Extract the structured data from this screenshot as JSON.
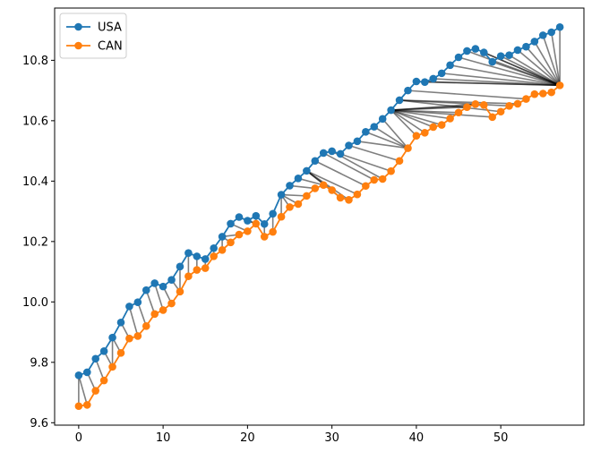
{
  "chart_data": {
    "type": "line",
    "x": [
      0,
      1,
      2,
      3,
      4,
      5,
      6,
      7,
      8,
      9,
      10,
      11,
      12,
      13,
      14,
      15,
      16,
      17,
      18,
      19,
      20,
      21,
      22,
      23,
      24,
      25,
      26,
      27,
      28,
      29,
      30,
      31,
      32,
      33,
      34,
      35,
      36,
      37,
      38,
      39,
      40,
      41,
      42,
      43,
      44,
      45,
      46,
      47,
      48,
      49,
      50,
      51,
      52,
      53,
      54,
      55,
      56,
      57
    ],
    "series": [
      {
        "name": "USA",
        "color": "#1f77b4",
        "values": [
          9.757,
          9.767,
          9.812,
          9.837,
          9.882,
          9.932,
          9.985,
          9.999,
          10.039,
          10.062,
          10.051,
          10.073,
          10.117,
          10.162,
          10.151,
          10.142,
          10.178,
          10.216,
          10.259,
          10.281,
          10.269,
          10.285,
          10.258,
          10.292,
          10.355,
          10.385,
          10.409,
          10.434,
          10.467,
          10.493,
          10.499,
          10.49,
          10.518,
          10.532,
          10.563,
          10.58,
          10.606,
          10.635,
          10.668,
          10.7,
          10.73,
          10.728,
          10.739,
          10.757,
          10.784,
          10.81,
          10.831,
          10.838,
          10.826,
          10.795,
          10.814,
          10.817,
          10.834,
          10.845,
          10.862,
          10.883,
          10.893,
          10.91
        ]
      },
      {
        "name": "CAN",
        "color": "#ff7f0e",
        "values": [
          9.655,
          9.659,
          9.706,
          9.74,
          9.785,
          9.831,
          9.879,
          9.887,
          9.92,
          9.96,
          9.973,
          9.995,
          10.034,
          10.085,
          10.106,
          10.112,
          10.151,
          10.172,
          10.197,
          10.223,
          10.234,
          10.259,
          10.216,
          10.232,
          10.282,
          10.314,
          10.324,
          10.351,
          10.376,
          10.387,
          10.37,
          10.345,
          10.338,
          10.356,
          10.384,
          10.404,
          10.407,
          10.433,
          10.467,
          10.509,
          10.55,
          10.56,
          10.579,
          10.586,
          10.607,
          10.627,
          10.645,
          10.655,
          10.652,
          10.612,
          10.63,
          10.649,
          10.656,
          10.672,
          10.688,
          10.69,
          10.694,
          10.717
        ]
      }
    ],
    "alignment": {
      "type": "dtw",
      "color": "#000000",
      "path": [
        [
          0,
          0
        ],
        [
          0,
          1
        ],
        [
          1,
          2
        ],
        [
          2,
          3
        ],
        [
          3,
          4
        ],
        [
          4,
          4
        ],
        [
          4,
          5
        ],
        [
          5,
          6
        ],
        [
          6,
          7
        ],
        [
          7,
          8
        ],
        [
          8,
          9
        ],
        [
          9,
          10
        ],
        [
          10,
          11
        ],
        [
          11,
          12
        ],
        [
          12,
          12
        ],
        [
          13,
          13
        ],
        [
          14,
          14
        ],
        [
          15,
          15
        ],
        [
          16,
          16
        ],
        [
          17,
          17
        ],
        [
          17,
          18
        ],
        [
          17,
          19
        ],
        [
          18,
          20
        ],
        [
          19,
          21
        ],
        [
          20,
          21
        ],
        [
          21,
          21
        ],
        [
          22,
          22
        ],
        [
          23,
          23
        ],
        [
          24,
          24
        ],
        [
          24,
          25
        ],
        [
          24,
          26
        ],
        [
          24,
          27
        ],
        [
          25,
          28
        ],
        [
          26,
          29
        ],
        [
          27,
          30
        ],
        [
          27,
          31
        ],
        [
          27,
          32
        ],
        [
          27,
          33
        ],
        [
          28,
          34
        ],
        [
          29,
          35
        ],
        [
          30,
          36
        ],
        [
          31,
          37
        ],
        [
          32,
          38
        ],
        [
          33,
          39
        ],
        [
          34,
          39
        ],
        [
          35,
          39
        ],
        [
          36,
          39
        ],
        [
          37,
          40
        ],
        [
          37,
          41
        ],
        [
          37,
          42
        ],
        [
          37,
          43
        ],
        [
          37,
          44
        ],
        [
          37,
          45
        ],
        [
          37,
          46
        ],
        [
          37,
          47
        ],
        [
          37,
          48
        ],
        [
          37,
          49
        ],
        [
          38,
          50
        ],
        [
          38,
          51
        ],
        [
          38,
          52
        ],
        [
          39,
          53
        ],
        [
          40,
          57
        ],
        [
          41,
          57
        ],
        [
          42,
          57
        ],
        [
          43,
          57
        ],
        [
          44,
          57
        ],
        [
          45,
          57
        ],
        [
          46,
          57
        ],
        [
          47,
          57
        ],
        [
          48,
          57
        ],
        [
          49,
          57
        ],
        [
          50,
          57
        ],
        [
          51,
          57
        ],
        [
          52,
          57
        ],
        [
          53,
          57
        ],
        [
          54,
          57
        ],
        [
          55,
          57
        ],
        [
          56,
          57
        ],
        [
          57,
          57
        ]
      ]
    },
    "xlim": [
      -2.85,
      59.85
    ],
    "ylim": [
      9.592,
      10.973
    ],
    "x_ticks": [
      0,
      10,
      20,
      30,
      40,
      50
    ],
    "x_tick_labels": [
      "0",
      "10",
      "20",
      "30",
      "40",
      "50"
    ],
    "y_ticks": [
      9.6,
      9.8,
      10.0,
      10.2,
      10.4,
      10.6,
      10.8
    ],
    "y_tick_labels": [
      "9.6",
      "9.8",
      "10.0",
      "10.2",
      "10.4",
      "10.6",
      "10.8"
    ],
    "legend": {
      "position": "upper-left",
      "entries": [
        "USA",
        "CAN"
      ]
    },
    "grid": false
  }
}
